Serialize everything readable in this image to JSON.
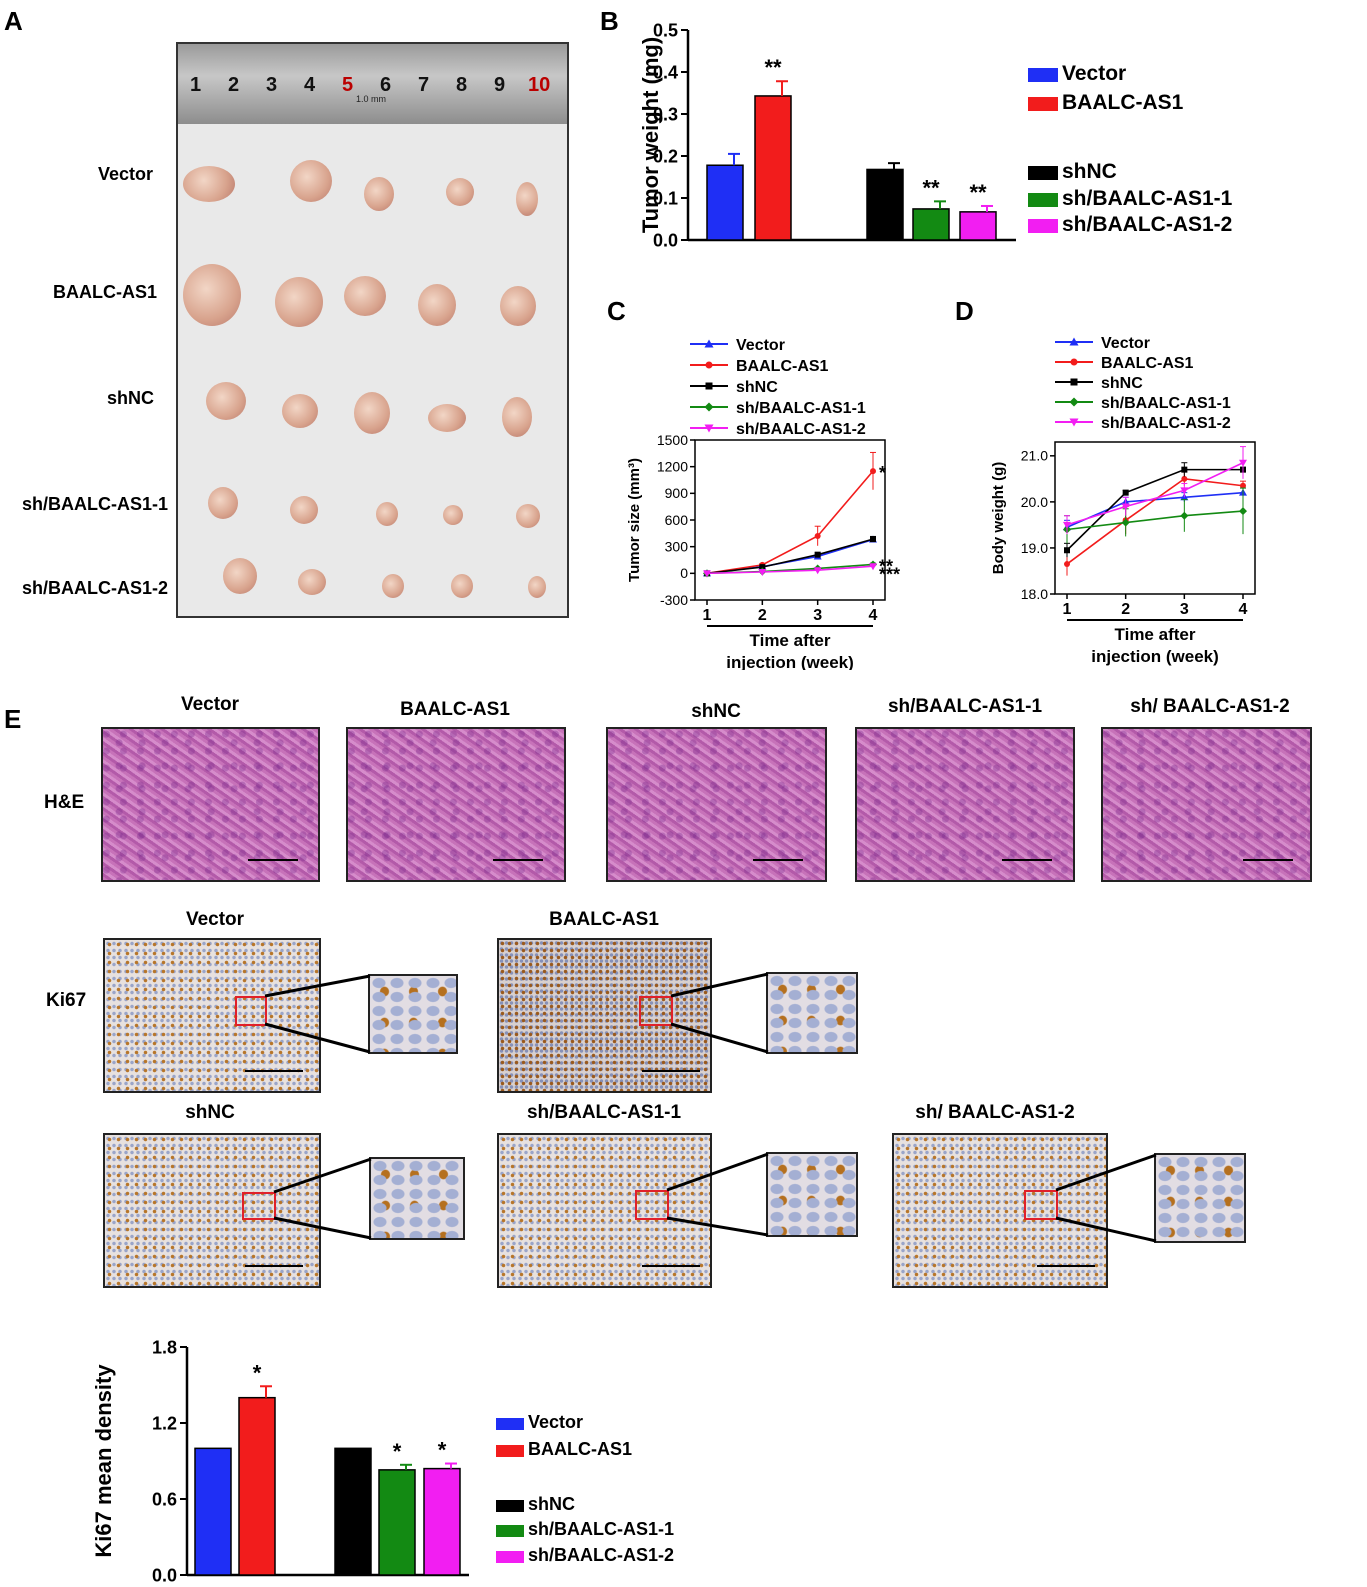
{
  "panels": {
    "A": "A",
    "B": "B",
    "C": "C",
    "D": "D",
    "E": "E"
  },
  "panelA": {
    "ruler_numbers": [
      "1",
      "2",
      "3",
      "4",
      "5",
      "6",
      "7",
      "8",
      "9",
      "10"
    ],
    "ruler_unit": "1.0 mm",
    "row_labels": [
      "Vector",
      "BAALC-AS1",
      "shNC",
      "sh/BAALC-AS1-1",
      "sh/BAALC-AS1-2"
    ]
  },
  "panelE": {
    "he_titles": [
      "Vector",
      "BAALC-AS1",
      "shNC",
      "sh/BAALC-AS1-1",
      "sh/ BAALC-AS1-2"
    ],
    "he_label": "H&E",
    "ki_label": "Ki67",
    "ki_titles_row1": [
      "Vector",
      "BAALC-AS1"
    ],
    "ki_titles_row2": [
      "shNC",
      "sh/BAALC-AS1-1",
      "sh/ BAALC-AS1-2"
    ]
  },
  "chart_data": [
    {
      "id": "B",
      "type": "bar",
      "ylabel": "Tumor weight (mg)",
      "ylim": [
        0,
        0.5
      ],
      "yticks": [
        "0.0",
        "0.1",
        "0.2",
        "0.3",
        "0.4",
        "0.5"
      ],
      "categories": [
        "Vector",
        "BAALC-AS1",
        "shNC",
        "sh/BAALC-AS1-1",
        "sh/BAALC-AS1-2"
      ],
      "values": [
        0.178,
        0.343,
        0.168,
        0.074,
        0.067
      ],
      "errors": [
        0.027,
        0.035,
        0.015,
        0.018,
        0.014
      ],
      "annotations": [
        "",
        "**",
        "",
        "**",
        "**"
      ],
      "colors": [
        "#1f2ff5",
        "#f21c1c",
        "#000000",
        "#138a13",
        "#f21ef2"
      ],
      "legend": [
        "Vector",
        "BAALC-AS1",
        "shNC",
        "sh/BAALC-AS1-1",
        "sh/BAALC-AS1-2"
      ]
    },
    {
      "id": "C",
      "type": "line",
      "ylabel": "Tumor size (mm³)",
      "xlabel_line1": "Time after",
      "xlabel_line2": "injection (week)",
      "x": [
        1,
        2,
        3,
        4
      ],
      "ylim": [
        -300,
        1500
      ],
      "yticks": [
        "-300",
        "0",
        "300",
        "600",
        "900",
        "1200",
        "1500"
      ],
      "series": [
        {
          "name": "Vector",
          "color": "#1f2ff5",
          "marker": "triangle",
          "values": [
            0,
            75,
            190,
            380
          ],
          "errors": [
            5,
            10,
            20,
            30
          ]
        },
        {
          "name": "BAALC-AS1",
          "color": "#f21c1c",
          "marker": "circle",
          "values": [
            0,
            95,
            420,
            1150
          ],
          "errors": [
            5,
            15,
            110,
            210
          ]
        },
        {
          "name": "shNC",
          "color": "#000000",
          "marker": "square",
          "values": [
            0,
            70,
            210,
            385
          ],
          "errors": [
            5,
            10,
            20,
            30
          ]
        },
        {
          "name": "sh/BAALC-AS1-1",
          "color": "#138a13",
          "marker": "diamond",
          "values": [
            0,
            20,
            55,
            100
          ],
          "errors": [
            3,
            5,
            10,
            15
          ]
        },
        {
          "name": "sh/BAALC-AS1-2",
          "color": "#f21ef2",
          "marker": "triangle-down",
          "values": [
            0,
            15,
            35,
            80
          ],
          "errors": [
            3,
            5,
            8,
            12
          ]
        }
      ],
      "annotations": [
        {
          "text": "*",
          "x": 4,
          "y": 1150
        },
        {
          "text": "**",
          "x": 4,
          "y": 100
        },
        {
          "text": "***",
          "x": 4,
          "y": 10
        }
      ]
    },
    {
      "id": "D",
      "type": "line",
      "ylabel": "Body weight (g)",
      "xlabel_line1": "Time after",
      "xlabel_line2": "injection (week)",
      "x": [
        1,
        2,
        3,
        4
      ],
      "ylim": [
        18.0,
        21.3
      ],
      "yticks": [
        "18.0",
        "19.0",
        "20.0",
        "21.0"
      ],
      "series": [
        {
          "name": "Vector",
          "color": "#1f2ff5",
          "marker": "triangle",
          "values": [
            19.45,
            20.0,
            20.1,
            20.2
          ],
          "errors": [
            0.15,
            0.1,
            0.1,
            0.1
          ]
        },
        {
          "name": "BAALC-AS1",
          "color": "#f21c1c",
          "marker": "circle",
          "values": [
            18.65,
            19.6,
            20.5,
            20.35
          ],
          "errors": [
            0.25,
            0.3,
            0.15,
            0.1
          ]
        },
        {
          "name": "shNC",
          "color": "#000000",
          "marker": "square",
          "values": [
            18.95,
            20.2,
            20.7,
            20.7
          ],
          "errors": [
            0.15,
            0.05,
            0.15,
            0.05
          ]
        },
        {
          "name": "sh/BAALC-AS1-1",
          "color": "#138a13",
          "marker": "diamond",
          "values": [
            19.4,
            19.55,
            19.7,
            19.8
          ],
          "errors": [
            0.3,
            0.3,
            0.35,
            0.5
          ]
        },
        {
          "name": "sh/BAALC-AS1-2",
          "color": "#f21ef2",
          "marker": "triangle-down",
          "values": [
            19.5,
            19.9,
            20.25,
            20.85
          ],
          "errors": [
            0.2,
            0.2,
            0.15,
            0.35
          ]
        }
      ]
    },
    {
      "id": "E-bar",
      "type": "bar",
      "ylabel": "Ki67 mean density",
      "ylim": [
        0,
        1.8
      ],
      "yticks": [
        "0.0",
        "0.6",
        "1.2",
        "1.8"
      ],
      "categories": [
        "Vector",
        "BAALC-AS1",
        "shNC",
        "sh/BAALC-AS1-1",
        "sh/BAALC-AS1-2"
      ],
      "values": [
        1.0,
        1.4,
        1.0,
        0.83,
        0.84
      ],
      "errors": [
        0,
        0.09,
        0,
        0.04,
        0.04
      ],
      "annotations": [
        "",
        "*",
        "",
        "*",
        "*"
      ],
      "colors": [
        "#1f2ff5",
        "#f21c1c",
        "#000000",
        "#138a13",
        "#f21ef2"
      ],
      "legend": [
        "Vector",
        "BAALC-AS1",
        "shNC",
        "sh/BAALC-AS1-1",
        "sh/BAALC-AS1-2"
      ]
    }
  ]
}
